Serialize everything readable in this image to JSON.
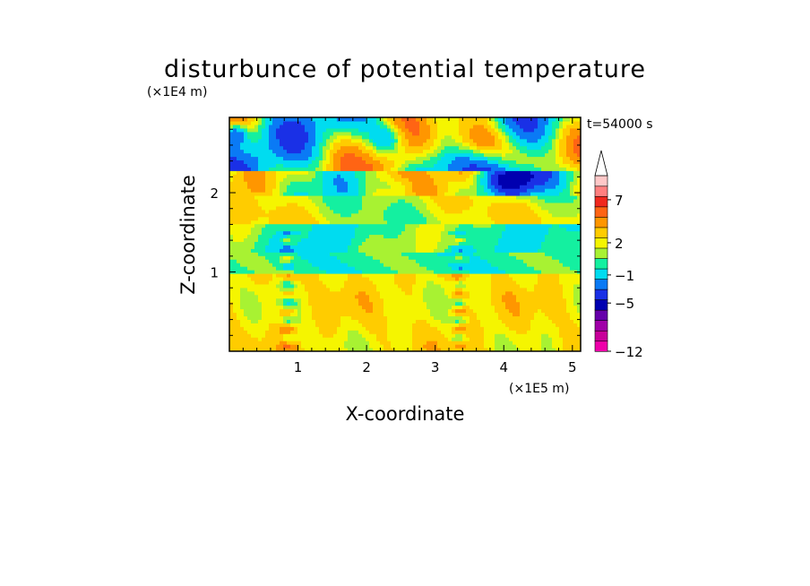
{
  "chart_data": {
    "type": "heatmap",
    "title": "disturbunce of potential temperature",
    "xlabel": "X-coordinate",
    "ylabel": "Z-coordinate",
    "x_unit": "(×1E5 m)",
    "y_unit": "(×1E4 m)",
    "time_label": "t=54000 s",
    "xlim": [
      0,
      5.12
    ],
    "ylim": [
      0,
      2.95
    ],
    "x_ticks": [
      1,
      2,
      3,
      4,
      5
    ],
    "y_ticks": [
      1,
      2
    ],
    "colorbar": {
      "bins": [
        {
          "lo": -12,
          "hi": -10.5,
          "color": "#ee00aa"
        },
        {
          "lo": -10.5,
          "hi": -9,
          "color": "#c8009a"
        },
        {
          "lo": -9,
          "hi": -7.5,
          "color": "#a000a8"
        },
        {
          "lo": -7.5,
          "hi": -6,
          "color": "#6600aa"
        },
        {
          "lo": -6,
          "hi": -4.5,
          "color": "#0000b0"
        },
        {
          "lo": -4.5,
          "hi": -3,
          "color": "#1a30e6"
        },
        {
          "lo": -3,
          "hi": -1.5,
          "color": "#0a7af5"
        },
        {
          "lo": -1.5,
          "hi": -0.2,
          "color": "#00dcf0"
        },
        {
          "lo": -0.2,
          "hi": 0.8,
          "color": "#14f0a0"
        },
        {
          "lo": 0.8,
          "hi": 1.6,
          "color": "#a8f232"
        },
        {
          "lo": 1.6,
          "hi": 2.4,
          "color": "#f5f500"
        },
        {
          "lo": 2.4,
          "hi": 3.4,
          "color": "#ffcc00"
        },
        {
          "lo": 3.4,
          "hi": 4.6,
          "color": "#ff9600"
        },
        {
          "lo": 4.6,
          "hi": 6,
          "color": "#ff6414"
        },
        {
          "lo": 6,
          "hi": 7.5,
          "color": "#f0281e"
        },
        {
          "lo": 7.5,
          "hi": 9,
          "color": "#ff8080"
        },
        {
          "lo": 9,
          "hi": 12,
          "color": "#ffc8c8"
        }
      ],
      "labels": [
        "7",
        "2",
        "−1",
        "−5",
        "−12"
      ],
      "label_values": [
        7,
        2,
        -1,
        -5,
        -12
      ],
      "extend": "max"
    }
  }
}
